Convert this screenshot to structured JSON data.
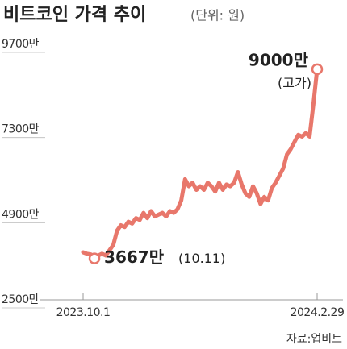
{
  "chart_data": {
    "type": "line",
    "title": "비트코인 가격 추이",
    "subtitle": "(단위: 원)",
    "source": "자료:업비트",
    "color": "#e8776b",
    "ylim": [
      2500,
      9700
    ],
    "yticks": [
      {
        "value": 2500,
        "label": "2500만"
      },
      {
        "value": 4900,
        "label": "4900만"
      },
      {
        "value": 7300,
        "label": "7300만"
      },
      {
        "value": 9700,
        "label": "9700만"
      }
    ],
    "categories": [
      "2023.10.1",
      null,
      null,
      null,
      null,
      null,
      null,
      null,
      null,
      null,
      null,
      null,
      null,
      null,
      null,
      null,
      null,
      null,
      null,
      null,
      null,
      null,
      null,
      null,
      null,
      null,
      null,
      null,
      null,
      null,
      null,
      null,
      null,
      null,
      null,
      null,
      null,
      null,
      null,
      null,
      null,
      null,
      null,
      null,
      null,
      null,
      null,
      null,
      null,
      null,
      null,
      null,
      null,
      null,
      null,
      null,
      null,
      null,
      null,
      null,
      null,
      null,
      "2024.2.29"
    ],
    "values": [
      3840,
      3800,
      3780,
      3667,
      3750,
      3800,
      3750,
      3900,
      4050,
      4450,
      4600,
      4550,
      4700,
      4650,
      4800,
      4750,
      4950,
      4800,
      5000,
      4850,
      4900,
      4950,
      4850,
      5000,
      4950,
      5050,
      5300,
      5900,
      5700,
      5800,
      5600,
      5700,
      5600,
      5800,
      5700,
      5550,
      5800,
      5600,
      5750,
      5700,
      5800,
      6100,
      5750,
      5500,
      5400,
      5700,
      5500,
      5200,
      5400,
      5300,
      5650,
      5800,
      6000,
      6200,
      6600,
      6750,
      6950,
      7150,
      7100,
      7200,
      7100,
      8000,
      9000
    ],
    "annotations": [
      {
        "index": 62,
        "label": "9000만",
        "note": "(고가)"
      },
      {
        "index": 3,
        "label": "3667만",
        "note": "(10.11)"
      }
    ]
  }
}
